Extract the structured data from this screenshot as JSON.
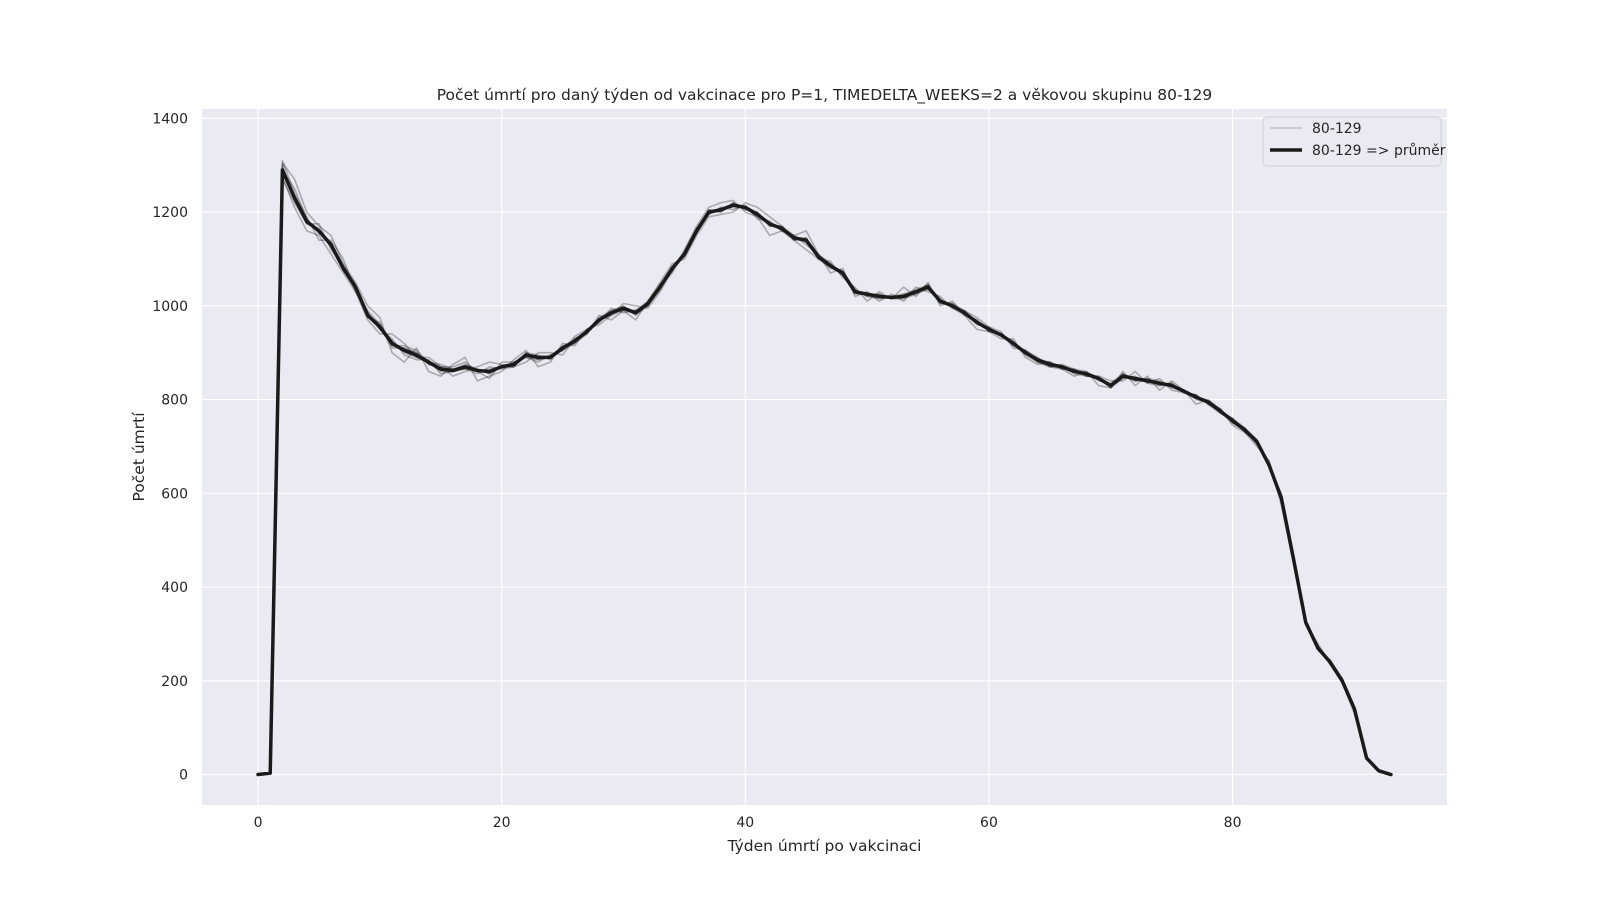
{
  "chart_data": {
    "type": "line",
    "title": "Počet úmrtí pro daný týden od vakcinace pro P=1, TIMEDELTA_WEEKS=2 a věkovou skupinu 80-129",
    "xlabel": "Týden úmrtí po vakcinaci",
    "ylabel": "Počet úmrtí",
    "xlim": [
      -4.6,
      97.6
    ],
    "ylim": [
      -65,
      1420
    ],
    "xticks": [
      0,
      20,
      40,
      60,
      80
    ],
    "yticks": [
      0,
      200,
      400,
      600,
      800,
      1000,
      1200,
      1400
    ],
    "grid": true,
    "legend_position": "top-right",
    "legend": [
      {
        "label": "80-129",
        "style": "thin-translucent"
      },
      {
        "label": "80-129 => průměr",
        "style": "thick-dark"
      }
    ],
    "colors": {
      "background": "#eaeaf2",
      "grid": "#ffffff",
      "series_thin": "#000000",
      "series_mean": "#1a1a1a"
    },
    "x": [
      0,
      1,
      2,
      3,
      4,
      5,
      6,
      7,
      8,
      9,
      10,
      11,
      12,
      13,
      14,
      15,
      16,
      17,
      18,
      19,
      20,
      21,
      22,
      23,
      24,
      25,
      26,
      27,
      28,
      29,
      30,
      31,
      32,
      33,
      34,
      35,
      36,
      37,
      38,
      39,
      40,
      41,
      42,
      43,
      44,
      45,
      46,
      47,
      48,
      49,
      50,
      51,
      52,
      53,
      54,
      55,
      56,
      57,
      58,
      59,
      60,
      61,
      62,
      63,
      64,
      65,
      66,
      67,
      68,
      69,
      70,
      71,
      72,
      73,
      74,
      75,
      76,
      77,
      78,
      79,
      80,
      81,
      82,
      83,
      84,
      85,
      86,
      87,
      88,
      89,
      90,
      91,
      92,
      93
    ],
    "series": [
      {
        "name": "80-129 => průměr",
        "values": [
          0,
          3,
          1290,
          1230,
          1180,
          1160,
          1130,
          1080,
          1040,
          980,
          955,
          920,
          905,
          895,
          880,
          865,
          862,
          870,
          862,
          860,
          870,
          875,
          895,
          890,
          890,
          910,
          925,
          945,
          970,
          985,
          995,
          985,
          1005,
          1040,
          1080,
          1110,
          1160,
          1200,
          1205,
          1215,
          1210,
          1195,
          1175,
          1165,
          1145,
          1140,
          1105,
          1085,
          1070,
          1030,
          1025,
          1020,
          1018,
          1020,
          1030,
          1040,
          1010,
          1000,
          985,
          965,
          950,
          938,
          920,
          900,
          885,
          875,
          870,
          860,
          855,
          845,
          830,
          850,
          845,
          840,
          835,
          830,
          818,
          805,
          795,
          775,
          755,
          735,
          710,
          660,
          590,
          460,
          325,
          270,
          240,
          200,
          140,
          35,
          8,
          0
        ]
      },
      {
        "name": "80-129",
        "values": [
          0,
          3,
          1305,
          1270,
          1200,
          1170,
          1150,
          1090,
          1050,
          1000,
          975,
          900,
          880,
          910,
          860,
          850,
          875,
          890,
          840,
          850,
          860,
          885,
          905,
          870,
          880,
          920,
          915,
          950,
          960,
          980,
          1005,
          1000,
          995,
          1030,
          1075,
          1120,
          1170,
          1210,
          1220,
          1225,
          1200,
          1190,
          1150,
          1160,
          1140,
          1120,
          1100,
          1095,
          1060,
          1040,
          1010,
          1030,
          1015,
          1040,
          1020,
          1050,
          1000,
          1010,
          980,
          950,
          945,
          930,
          930,
          890,
          875,
          880,
          865,
          850,
          860,
          830,
          825,
          860,
          830,
          850,
          820,
          840,
          820,
          790,
          800,
          780,
          745,
          730,
          700,
          670,
          575,
          450,
          320,
          280,
          235,
          195,
          130,
          35,
          8,
          0
        ]
      },
      {
        "name": "80-129",
        "values": [
          0,
          3,
          1275,
          1210,
          1160,
          1150,
          1110,
          1070,
          1030,
          970,
          940,
          940,
          920,
          890,
          890,
          870,
          850,
          860,
          870,
          880,
          875,
          870,
          880,
          900,
          900,
          895,
          930,
          940,
          980,
          970,
          990,
          970,
          1010,
          1050,
          1090,
          1100,
          1150,
          1190,
          1195,
          1200,
          1220,
          1210,
          1190,
          1170,
          1150,
          1160,
          1110,
          1070,
          1080,
          1020,
          1030,
          1010,
          1025,
          1010,
          1040,
          1030,
          1020,
          995,
          990,
          975,
          955,
          945,
          910,
          905,
          890,
          870,
          875,
          865,
          850,
          850,
          840,
          840,
          860,
          835,
          845,
          820,
          815,
          810,
          790,
          770,
          760,
          740,
          715,
          655,
          600,
          470,
          330,
          265,
          245,
          205,
          145,
          35,
          8,
          0
        ]
      },
      {
        "name": "80-129",
        "values": [
          0,
          3,
          1310,
          1240,
          1190,
          1140,
          1140,
          1100,
          1030,
          990,
          960,
          910,
          910,
          900,
          875,
          870,
          870,
          880,
          860,
          845,
          880,
          880,
          890,
          880,
          895,
          905,
          935,
          950,
          965,
          995,
          985,
          990,
          1000,
          1045,
          1070,
          1115,
          1165,
          1195,
          1210,
          1205,
          1215,
          1185,
          1180,
          1160,
          1150,
          1130,
          1110,
          1090,
          1065,
          1035,
          1020,
          1015,
          1020,
          1025,
          1035,
          1045,
          1005,
          1005,
          990,
          960,
          955,
          935,
          925,
          895,
          880,
          870,
          865,
          865,
          860,
          840,
          835,
          855,
          840,
          845,
          840,
          825,
          820,
          800,
          795,
          780,
          750,
          735,
          705,
          665,
          585,
          455,
          320,
          275,
          240,
          200,
          138,
          35,
          8,
          0
        ]
      },
      {
        "name": "80-129",
        "values": [
          0,
          3,
          1270,
          1220,
          1175,
          1175,
          1120,
          1085,
          1045,
          985,
          950,
          930,
          895,
          885,
          885,
          855,
          860,
          865,
          855,
          870,
          865,
          870,
          900,
          895,
          885,
          915,
          920,
          940,
          975,
          990,
          1000,
          980,
          1000,
          1035,
          1085,
          1105,
          1155,
          1205,
          1200,
          1220,
          1205,
          1200,
          1170,
          1170,
          1140,
          1145,
          1100,
          1080,
          1075,
          1025,
          1025,
          1025,
          1015,
          1015,
          1025,
          1035,
          1015,
          995,
          980,
          970,
          945,
          940,
          915,
          905,
          885,
          880,
          870,
          855,
          850,
          845,
          825,
          845,
          850,
          835,
          830,
          835,
          815,
          810,
          790,
          775,
          760,
          730,
          710,
          660,
          595,
          465,
          330,
          268,
          238,
          198,
          142,
          35,
          8,
          0
        ]
      },
      {
        "name": "80-129",
        "values": [
          0,
          3,
          1290,
          1250,
          1185,
          1155,
          1135,
          1075,
          1040,
          975,
          965,
          915,
          915,
          905,
          880,
          875,
          865,
          875,
          865,
          855,
          870,
          880,
          890,
          885,
          890,
          905,
          930,
          945,
          970,
          980,
          990,
          990,
          1010,
          1045,
          1075,
          1115,
          1165,
          1195,
          1210,
          1210,
          1210,
          1190,
          1180,
          1160,
          1150,
          1135,
          1105,
          1085,
          1065,
          1030,
          1025,
          1020,
          1020,
          1020,
          1030,
          1045,
          1010,
          1000,
          985,
          965,
          950,
          940,
          920,
          900,
          880,
          870,
          870,
          860,
          855,
          845,
          830,
          850,
          840,
          840,
          835,
          830,
          815,
          805,
          795,
          775,
          755,
          735,
          710,
          660,
          590,
          460,
          325,
          270,
          240,
          200,
          140,
          35,
          8,
          0
        ]
      },
      {
        "name": "80-129",
        "values": [
          0,
          3,
          1300,
          1225,
          1175,
          1165,
          1125,
          1080,
          1035,
          985,
          950,
          925,
          900,
          890,
          880,
          860,
          860,
          870,
          860,
          865,
          870,
          875,
          895,
          890,
          890,
          910,
          925,
          945,
          970,
          985,
          995,
          985,
          1005,
          1040,
          1080,
          1110,
          1160,
          1200,
          1205,
          1215,
          1210,
          1195,
          1175,
          1165,
          1145,
          1140,
          1105,
          1085,
          1070,
          1030,
          1025,
          1020,
          1018,
          1020,
          1030,
          1040,
          1010,
          1000,
          985,
          965,
          950,
          938,
          920,
          900,
          885,
          875,
          870,
          860,
          855,
          845,
          830,
          850,
          845,
          840,
          835,
          830,
          818,
          805,
          795,
          775,
          755,
          735,
          710,
          660,
          590,
          460,
          325,
          270,
          240,
          200,
          140,
          35,
          8,
          0
        ]
      },
      {
        "name": "80-129",
        "values": [
          0,
          3,
          1285,
          1235,
          1185,
          1155,
          1135,
          1085,
          1045,
          975,
          960,
          915,
          910,
          900,
          875,
          870,
          865,
          865,
          865,
          855,
          870,
          870,
          900,
          885,
          895,
          905,
          920,
          950,
          965,
          990,
          990,
          990,
          1000,
          1045,
          1075,
          1115,
          1155,
          1205,
          1200,
          1220,
          1205,
          1200,
          1170,
          1170,
          1140,
          1145,
          1100,
          1090,
          1065,
          1035,
          1020,
          1025,
          1015,
          1025,
          1025,
          1045,
          1005,
          1005,
          980,
          970,
          945,
          942,
          915,
          905,
          880,
          880,
          865,
          865,
          850,
          850,
          825,
          855,
          840,
          845,
          830,
          835,
          815,
          810,
          790,
          780,
          750,
          740,
          705,
          665,
          585,
          465,
          320,
          275,
          235,
          205,
          135,
          35,
          8,
          0
        ]
      }
    ]
  }
}
